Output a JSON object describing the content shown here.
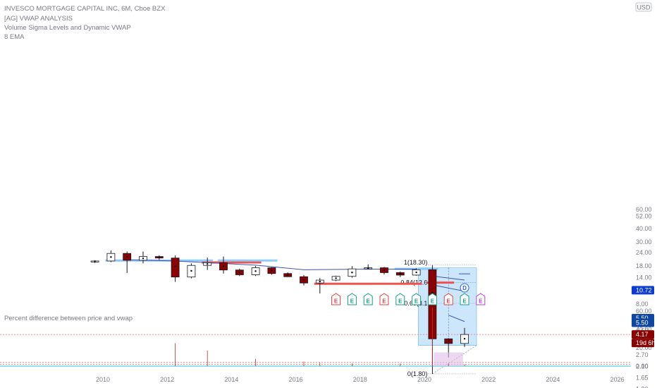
{
  "header": {
    "title": "INVESCO MORTGAGE CAPITAL INC, 6M, Cboe BZX",
    "indicator_1": "[AG] VWAP ANALYSIS",
    "indicator_2": "Volume Sigma Levels and Dynamic VWAP",
    "indicator_3": "8 EMA",
    "currency": "USD"
  },
  "lower_pane": {
    "label": "Percent difference between price and vwap"
  },
  "price_tags": [
    {
      "value": "10.72",
      "color": "#0d3bd6"
    },
    {
      "value": "5.50",
      "color": "#0d47a1"
    },
    {
      "value": "5.50",
      "color": "#0d47a1"
    },
    {
      "value": "4.17",
      "color": "#8b0000"
    },
    {
      "value": "19d 6h",
      "color": "#8b0000"
    }
  ],
  "fib_labels": [
    "1(18.30)",
    "0.84(12.6",
    "0.65(8.1",
    "0(1.80)"
  ],
  "event_markers": {
    "earnings_letter": "E",
    "dividend_letter": "D",
    "colors": {
      "red": "#e84040",
      "green": "#16a085",
      "blue": "#2962ff",
      "purple": "#c040e0"
    }
  },
  "colors": {
    "up_fill": "#ffffff",
    "down_fill": "#8b0000",
    "wick": "#131722",
    "fib_box": "#bbdefb",
    "vwap_line": "#3f51b5",
    "ema_line": "#7b1fa2",
    "red_level": "#ef5350",
    "blue_level": "#90caf9",
    "current_price": "#e57373"
  },
  "chart_data": {
    "type": "candlestick",
    "title": "INVESCO MORTGAGE CAPITAL INC, 6M, Cboe BZX",
    "x_axis": {
      "ticks": [
        "2010",
        "2012",
        "2014",
        "2016",
        "2018",
        "2020",
        "2022",
        "2024",
        "2026"
      ]
    },
    "y_axis": {
      "scale": "log",
      "ticks": [
        "60.00",
        "52.00",
        "40.00",
        "30.00",
        "24.00",
        "18.00",
        "14.00",
        "10.72",
        "8.00",
        "5.50",
        "4.50",
        "3.50",
        "2.70",
        "2.10",
        "1.65",
        "1.30"
      ],
      "range": [
        1.2,
        62
      ]
    },
    "candles": [
      {
        "period": "2009-H2",
        "open": 19.8,
        "high": 20.2,
        "low": 19.2,
        "close": 20.0
      },
      {
        "period": "2010-H1",
        "open": 20.0,
        "high": 25.0,
        "low": 19.5,
        "close": 23.5
      },
      {
        "period": "2010-H2",
        "open": 23.5,
        "high": 24.5,
        "low": 15.5,
        "close": 20.3
      },
      {
        "period": "2011-H1",
        "open": 20.3,
        "high": 24.5,
        "low": 19.0,
        "close": 22.0
      },
      {
        "period": "2011-H2",
        "open": 22.0,
        "high": 22.5,
        "low": 20.5,
        "close": 21.3
      },
      {
        "period": "2012-H1",
        "open": 21.3,
        "high": 22.5,
        "low": 12.8,
        "close": 14.2
      },
      {
        "period": "2012-H2",
        "open": 14.2,
        "high": 19.0,
        "low": 13.8,
        "close": 18.2
      },
      {
        "period": "2013-H1",
        "open": 18.2,
        "high": 21.5,
        "low": 16.5,
        "close": 19.3
      },
      {
        "period": "2013-H2",
        "open": 19.3,
        "high": 22.0,
        "low": 15.3,
        "close": 16.5
      },
      {
        "period": "2014-H1",
        "open": 16.5,
        "high": 17.0,
        "low": 14.5,
        "close": 14.9
      },
      {
        "period": "2014-H2",
        "open": 14.9,
        "high": 18.0,
        "low": 14.5,
        "close": 17.3
      },
      {
        "period": "2015-H1",
        "open": 17.3,
        "high": 17.5,
        "low": 14.9,
        "close": 15.3
      },
      {
        "period": "2015-H2",
        "open": 15.3,
        "high": 15.7,
        "low": 14.2,
        "close": 14.3
      },
      {
        "period": "2016-H1",
        "open": 14.3,
        "high": 14.8,
        "low": 11.9,
        "close": 12.5
      },
      {
        "period": "2016-H2",
        "open": 12.5,
        "high": 13.9,
        "low": 10.0,
        "close": 13.3
      },
      {
        "period": "2017-H1",
        "open": 13.3,
        "high": 14.6,
        "low": 13.0,
        "close": 14.4
      },
      {
        "period": "2017-H2",
        "open": 14.4,
        "high": 17.9,
        "low": 14.0,
        "close": 16.9
      },
      {
        "period": "2018-H1",
        "open": 16.9,
        "high": 18.6,
        "low": 16.8,
        "close": 17.3
      },
      {
        "period": "2018-H2",
        "open": 17.3,
        "high": 17.6,
        "low": 15.0,
        "close": 15.6
      },
      {
        "period": "2019-H1",
        "open": 15.6,
        "high": 16.0,
        "low": 14.2,
        "close": 14.8
      },
      {
        "period": "2019-H2",
        "open": 14.8,
        "high": 17.1,
        "low": 14.6,
        "close": 16.6
      },
      {
        "period": "2020-H1",
        "open": 16.6,
        "high": 18.3,
        "low": 1.8,
        "close": 3.8
      },
      {
        "period": "2020-H2",
        "open": 3.8,
        "high": 3.85,
        "low": 2.55,
        "close": 3.44
      },
      {
        "period": "2021-H1",
        "open": 3.44,
        "high": 4.8,
        "low": 3.2,
        "close": 4.17
      }
    ],
    "vwap": {
      "name": "Dynamic VWAP",
      "points": [
        [
          "2010-H2",
          20.5
        ],
        [
          "2012-H1",
          20.0
        ],
        [
          "2014-H2",
          18.3
        ],
        [
          "2016-H1",
          16.6
        ],
        [
          "2018-H1",
          16.8
        ],
        [
          "2019-H2",
          16.8
        ]
      ]
    },
    "vwap_segments_2020": [
      [
        [
          "2020-H1",
          14.5
        ],
        [
          "2021-H1",
          13.3
        ]
      ],
      [
        [
          "2020-H1",
          12.0
        ],
        [
          "2021-H1",
          10.5
        ]
      ],
      [
        [
          "2020-H2",
          6.3
        ],
        [
          "2021-H1",
          5.5
        ]
      ]
    ],
    "levels": [
      {
        "color": "red",
        "value": 19.4,
        "from": "2013-H1",
        "to": "2014-H2"
      },
      {
        "color": "red",
        "value": 12.3,
        "from": "2016-H2",
        "to": "2019-H2"
      },
      {
        "color": "red",
        "value": 12.6,
        "from": "2020-H1",
        "to": "2020-H2"
      },
      {
        "color": "blue",
        "value": 20.2,
        "from": "2010-H1",
        "to": "2013-H1"
      },
      {
        "color": "blue",
        "value": 20.2,
        "from": "2013-H2",
        "to": "2015-H1"
      },
      {
        "color": "blue",
        "value": 16.9,
        "from": "2019-H1",
        "to": "2020-H1"
      }
    ],
    "fib_retracement": {
      "high": 18.3,
      "low": 1.8,
      "levels": [
        {
          "ratio": 1,
          "label": "1(18.30)",
          "price": 18.3
        },
        {
          "ratio": 0.84,
          "label": "0.84(12.6",
          "price": 12.6
        },
        {
          "ratio": 0.65,
          "label": "0.65(8.1",
          "price": 8.1
        },
        {
          "ratio": 0,
          "label": "0(1.80)",
          "price": 1.8
        }
      ]
    },
    "current_price": 4.17,
    "events": [
      {
        "period": "2017-H1",
        "type": "E",
        "color": "red"
      },
      {
        "period": "2017-H2",
        "type": "E",
        "color": "green"
      },
      {
        "period": "2018-H1",
        "type": "E",
        "color": "green"
      },
      {
        "period": "2018-H2",
        "type": "E",
        "color": "red"
      },
      {
        "period": "2019-H1",
        "type": "E",
        "color": "green"
      },
      {
        "period": "2019-H2",
        "type": "E",
        "color": "green"
      },
      {
        "period": "2020-H1",
        "type": "E",
        "color": "green"
      },
      {
        "period": "2020-H2",
        "type": "E",
        "color": "red"
      },
      {
        "period": "2021-H1",
        "type": "E",
        "color": "green"
      },
      {
        "period": "2021-H1",
        "type": "D",
        "color": "blue"
      },
      {
        "period": "2021-H2",
        "type": "E",
        "color": "purple"
      }
    ],
    "lower_pane": {
      "label": "Percent difference between price and vwap",
      "y_ticks": [
        "60.00",
        "40.00",
        "20.00",
        "0.00"
      ],
      "range": [
        0,
        64
      ],
      "bars": [
        {
          "period": "2012-H1",
          "value": 25
        },
        {
          "period": "2013-H1",
          "value": 17
        },
        {
          "period": "2014-H2",
          "value": 8
        },
        {
          "period": "2016-H1",
          "value": 5
        },
        {
          "period": "2016-H2",
          "value": 4
        },
        {
          "period": "2017-H2",
          "value": 3
        },
        {
          "period": "2019-H1",
          "value": 3
        },
        {
          "period": "2020-H1",
          "value": 64
        },
        {
          "period": "2020-H2",
          "value": 3
        },
        {
          "period": "2021-H1",
          "value": 2
        }
      ],
      "highlight": {
        "from": "2020-H1",
        "to": "2021-H1",
        "value": 15
      }
    }
  }
}
